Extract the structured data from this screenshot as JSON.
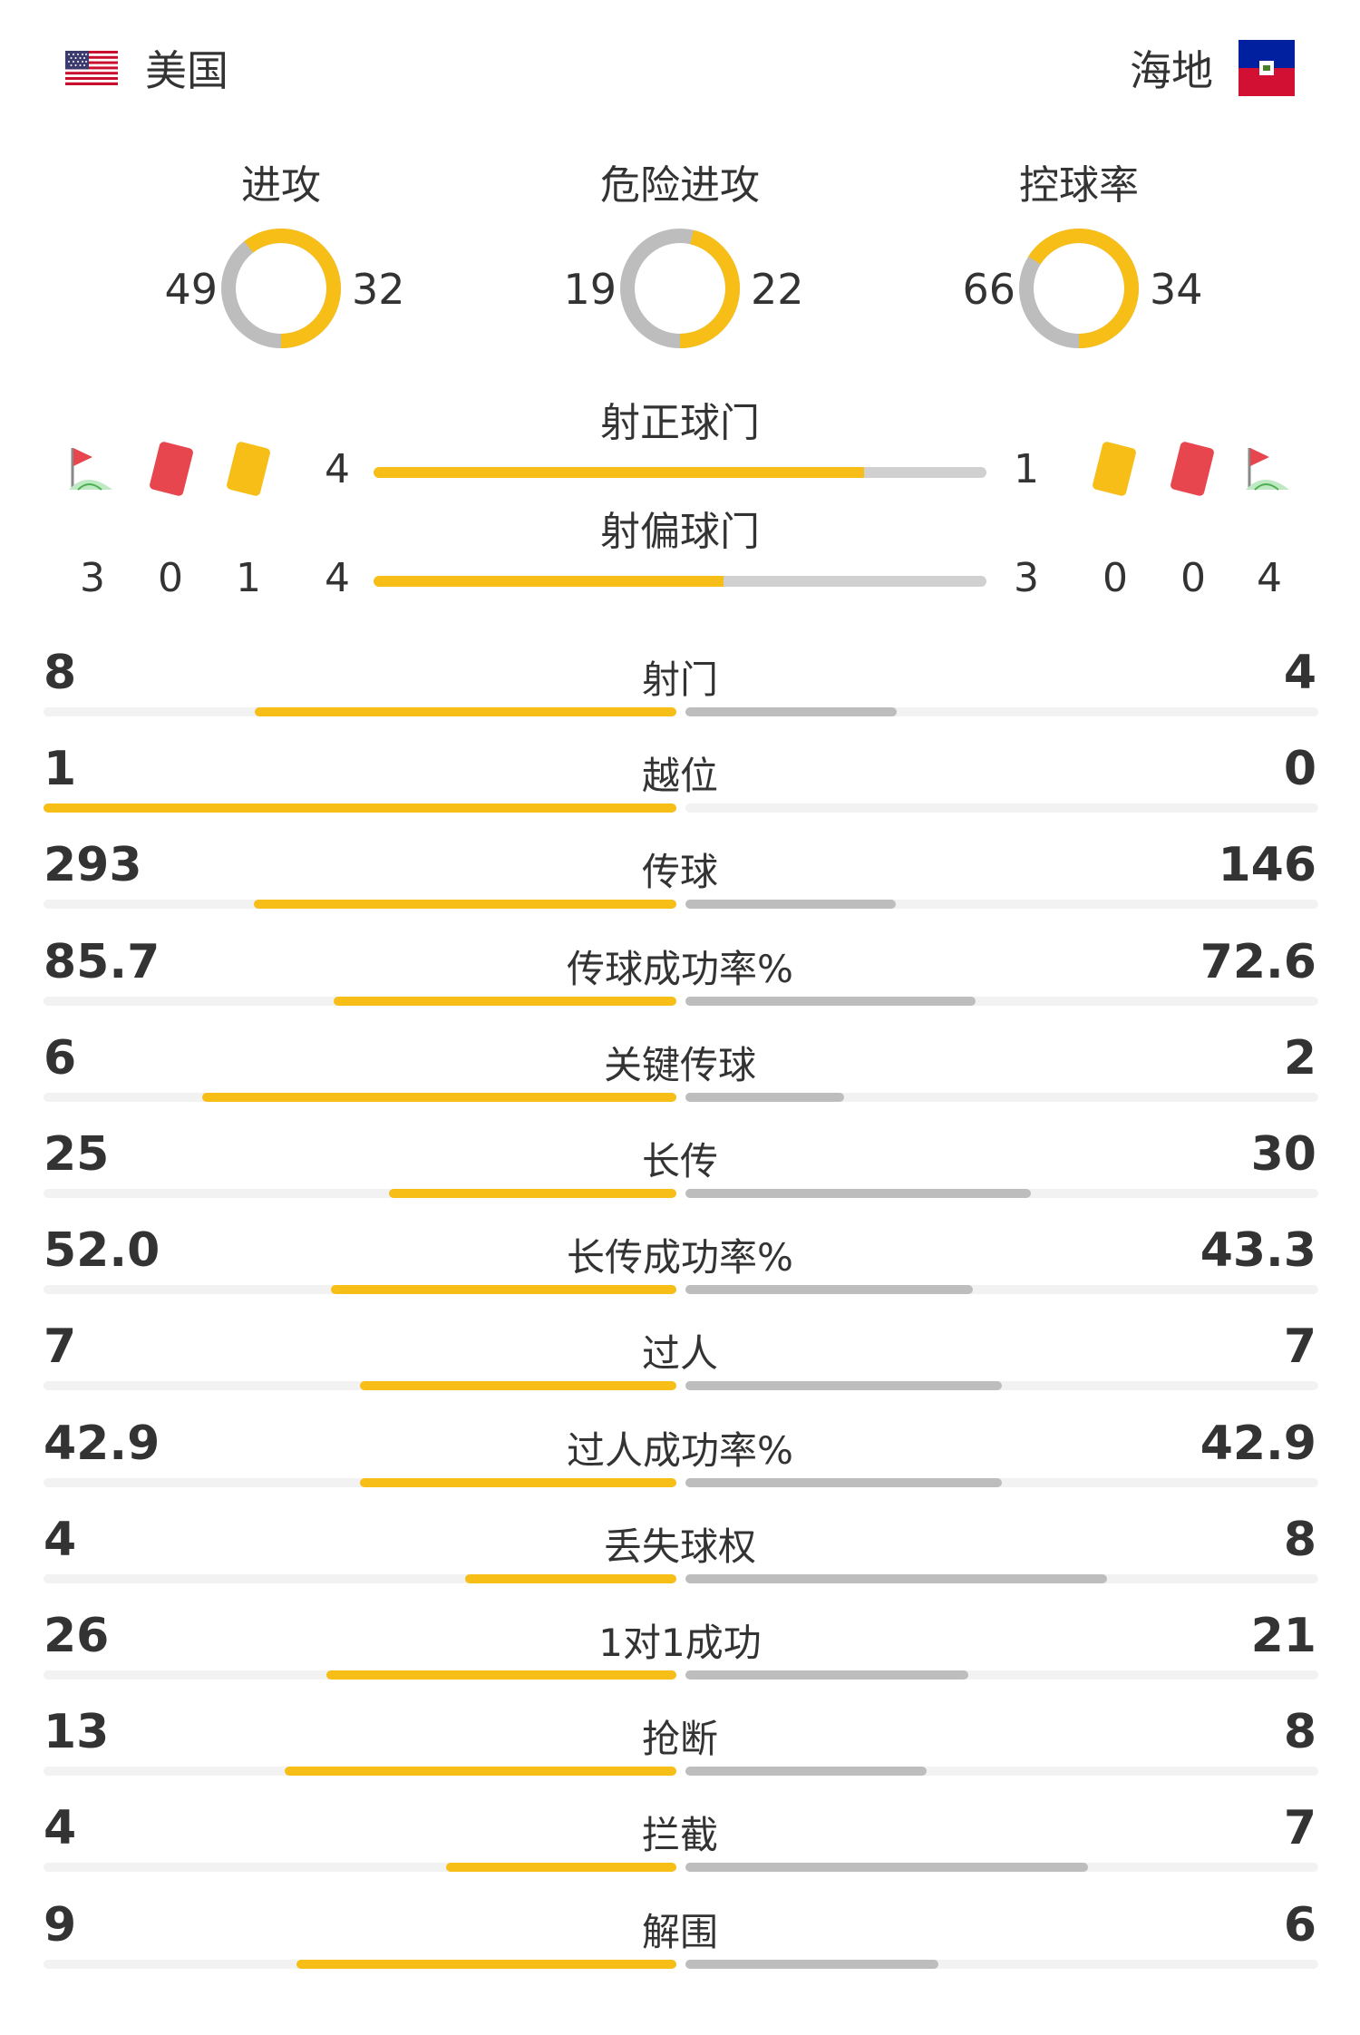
{
  "header": {
    "home": {
      "name": "美国",
      "flag": "us-flag-icon"
    },
    "away": {
      "name": "海地",
      "flag": "haiti-flag-icon"
    }
  },
  "colors": {
    "home": "#f6be16",
    "away": "#bdbdbd",
    "track": "#f2f2f2",
    "red_card": "#e8464e",
    "yellow_card": "#f6be16"
  },
  "donuts": [
    {
      "title": "进攻",
      "home": "49",
      "away": "32",
      "home_v": 49,
      "away_v": 32
    },
    {
      "title": "危险进攻",
      "home": "19",
      "away": "22",
      "home_v": 19,
      "away_v": 22
    },
    {
      "title": "控球率",
      "home": "66",
      "away": "34",
      "home_v": 66,
      "away_v": 34
    }
  ],
  "shots": {
    "on_target": {
      "title": "射正球门",
      "home": "4",
      "away": "1",
      "home_v": 4,
      "away_v": 1
    },
    "off_target": {
      "title": "射偏球门",
      "home": "4",
      "away": "3",
      "home_v": 4,
      "away_v": 3
    },
    "home_events": {
      "corners": "3",
      "red_cards": "0",
      "yellow_cards": "1"
    },
    "away_events": {
      "corners": "4",
      "red_cards": "0",
      "yellow_cards": "0"
    }
  },
  "stats": [
    {
      "label": "射门",
      "home": "8",
      "away": "4",
      "home_v": 8,
      "away_v": 4
    },
    {
      "label": "越位",
      "home": "1",
      "away": "0",
      "home_v": 1,
      "away_v": 0
    },
    {
      "label": "传球",
      "home": "293",
      "away": "146",
      "home_v": 293,
      "away_v": 146
    },
    {
      "label": "传球成功率%",
      "home": "85.7",
      "away": "72.6",
      "home_v": 85.7,
      "away_v": 72.6
    },
    {
      "label": "关键传球",
      "home": "6",
      "away": "2",
      "home_v": 6,
      "away_v": 2
    },
    {
      "label": "长传",
      "home": "25",
      "away": "30",
      "home_v": 25,
      "away_v": 30
    },
    {
      "label": "长传成功率%",
      "home": "52.0",
      "away": "43.3",
      "home_v": 52.0,
      "away_v": 43.3
    },
    {
      "label": "过人",
      "home": "7",
      "away": "7",
      "home_v": 7,
      "away_v": 7
    },
    {
      "label": "过人成功率%",
      "home": "42.9",
      "away": "42.9",
      "home_v": 42.9,
      "away_v": 42.9
    },
    {
      "label": "丢失球权",
      "home": "4",
      "away": "8",
      "home_v": 4,
      "away_v": 8
    },
    {
      "label": "1对1成功",
      "home": "26",
      "away": "21",
      "home_v": 26,
      "away_v": 21
    },
    {
      "label": "抢断",
      "home": "13",
      "away": "8",
      "home_v": 13,
      "away_v": 8
    },
    {
      "label": "拦截",
      "home": "4",
      "away": "7",
      "home_v": 4,
      "away_v": 7
    },
    {
      "label": "解围",
      "home": "9",
      "away": "6",
      "home_v": 9,
      "away_v": 6
    }
  ]
}
